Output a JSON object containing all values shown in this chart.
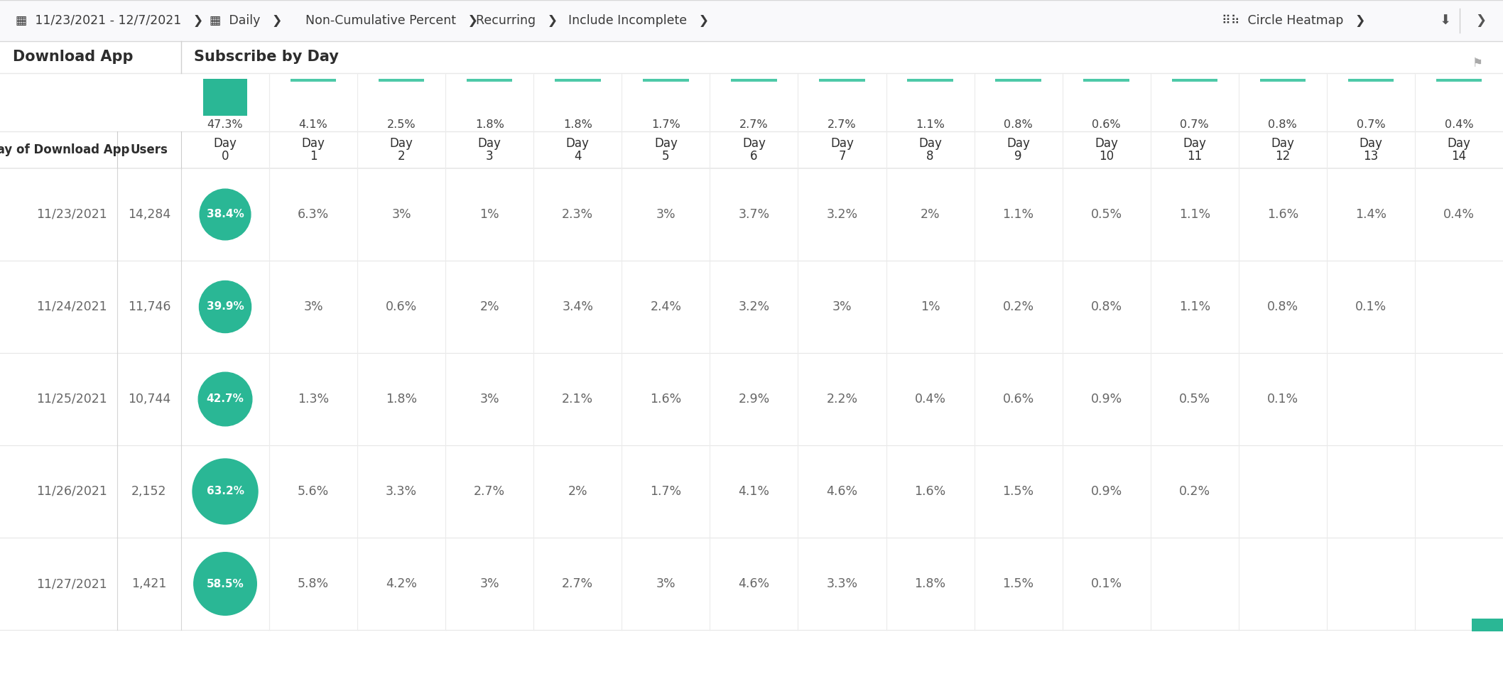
{
  "col_header_pct": [
    "47.3%",
    "4.1%",
    "2.5%",
    "1.8%",
    "1.8%",
    "1.7%",
    "2.7%",
    "2.7%",
    "1.1%",
    "0.8%",
    "0.6%",
    "0.7%",
    "0.8%",
    "0.7%",
    "0.4%"
  ],
  "col_header_day": [
    "Day",
    "Day",
    "Day",
    "Day",
    "Day",
    "Day",
    "Day",
    "Day",
    "Day",
    "Day",
    "Day",
    "Day",
    "Day",
    "Day",
    "Day"
  ],
  "col_header_num": [
    "0",
    "1",
    "2",
    "3",
    "4",
    "5",
    "6",
    "7",
    "8",
    "9",
    "10",
    "11",
    "12",
    "13",
    "14"
  ],
  "row_labels": [
    "11/23/2021",
    "11/24/2021",
    "11/25/2021",
    "11/26/2021",
    "11/27/2021"
  ],
  "user_counts": [
    "14,284",
    "11,746",
    "10,744",
    "2,152",
    "1,421"
  ],
  "data": [
    [
      "38.4%",
      "6.3%",
      "3%",
      "1%",
      "2.3%",
      "3%",
      "3.7%",
      "3.2%",
      "2%",
      "1.1%",
      "0.5%",
      "1.1%",
      "1.6%",
      "1.4%",
      "0.4%"
    ],
    [
      "39.9%",
      "3%",
      "0.6%",
      "2%",
      "3.4%",
      "2.4%",
      "3.2%",
      "3%",
      "1%",
      "0.2%",
      "0.8%",
      "1.1%",
      "0.8%",
      "0.1%",
      ""
    ],
    [
      "42.7%",
      "1.3%",
      "1.8%",
      "3%",
      "2.1%",
      "1.6%",
      "2.9%",
      "2.2%",
      "0.4%",
      "0.6%",
      "0.9%",
      "0.5%",
      "0.1%",
      "",
      ""
    ],
    [
      "63.2%",
      "5.6%",
      "3.3%",
      "2.7%",
      "2%",
      "1.7%",
      "4.1%",
      "4.6%",
      "1.6%",
      "1.5%",
      "0.9%",
      "0.2%",
      "",
      "",
      ""
    ],
    [
      "58.5%",
      "5.8%",
      "4.2%",
      "3%",
      "2.7%",
      "3%",
      "4.6%",
      "3.3%",
      "1.8%",
      "1.5%",
      "0.1%",
      "",
      "",
      "",
      ""
    ]
  ],
  "circle_values": [
    38.4,
    39.9,
    42.7,
    63.2,
    58.5
  ],
  "header_bar_values": [
    47.3,
    4.1,
    2.5,
    1.8,
    1.8,
    1.7,
    2.7,
    2.7,
    1.1,
    0.8,
    0.6,
    0.7,
    0.8,
    0.7,
    0.4
  ],
  "teal": "#2ab795",
  "teal_mid": "#4dc9a8",
  "teal_light": "#7fdfc5",
  "white": "#ffffff",
  "bg": "#ffffff",
  "grid": "#e8e8e8",
  "text_dark": "#2d2d2d",
  "text_mid": "#444444",
  "text_light": "#666666",
  "filter_bg": "#f9f9fb"
}
